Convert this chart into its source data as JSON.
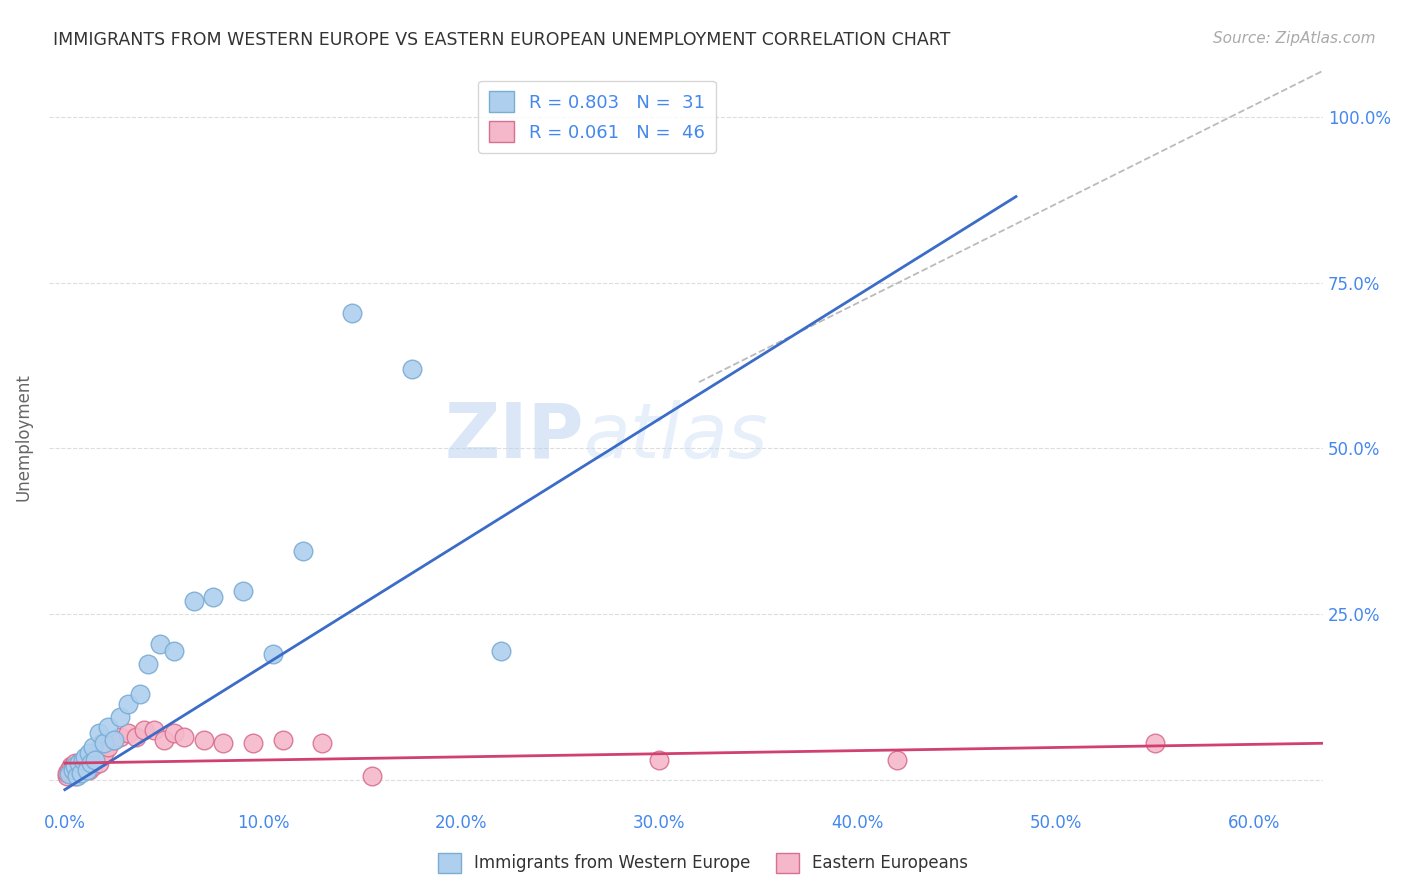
{
  "title": "IMMIGRANTS FROM WESTERN EUROPE VS EASTERN EUROPEAN UNEMPLOYMENT CORRELATION CHART",
  "source": "Source: ZipAtlas.com",
  "ylabel": "Unemployment",
  "watermark_zip": "ZIP",
  "watermark_atlas": "atlas",
  "x_ticks": [
    0.0,
    0.1,
    0.2,
    0.3,
    0.4,
    0.5,
    0.6
  ],
  "x_tick_labels": [
    "0.0%",
    "10.0%",
    "20.0%",
    "30.0%",
    "40.0%",
    "50.0%",
    "60.0%"
  ],
  "y_ticks": [
    0.0,
    0.25,
    0.5,
    0.75,
    1.0
  ],
  "y_tick_labels_right": [
    "",
    "25.0%",
    "50.0%",
    "75.0%",
    "100.0%"
  ],
  "xlim": [
    -0.008,
    0.635
  ],
  "ylim": [
    -0.045,
    1.08
  ],
  "series1_label": "Immigrants from Western Europe",
  "series1_R": "0.803",
  "series1_N": "31",
  "series1_color": "#aecfee",
  "series1_edge_color": "#7aadd4",
  "series1_line_color": "#3a6cc8",
  "series2_label": "Eastern Europeans",
  "series2_R": "0.061",
  "series2_N": "46",
  "series2_color": "#f5b8ca",
  "series2_edge_color": "#d87090",
  "series2_line_color": "#d04070",
  "blue_scatter_x": [
    0.002,
    0.004,
    0.005,
    0.006,
    0.007,
    0.008,
    0.009,
    0.01,
    0.011,
    0.012,
    0.013,
    0.014,
    0.015,
    0.017,
    0.02,
    0.022,
    0.025,
    0.028,
    0.032,
    0.038,
    0.042,
    0.048,
    0.055,
    0.065,
    0.075,
    0.09,
    0.105,
    0.12,
    0.145,
    0.175,
    0.22
  ],
  "blue_scatter_y": [
    0.008,
    0.015,
    0.02,
    0.005,
    0.025,
    0.01,
    0.03,
    0.035,
    0.015,
    0.04,
    0.025,
    0.05,
    0.03,
    0.07,
    0.055,
    0.08,
    0.06,
    0.095,
    0.115,
    0.13,
    0.175,
    0.205,
    0.195,
    0.27,
    0.275,
    0.285,
    0.19,
    0.345,
    0.705,
    0.62,
    0.195
  ],
  "pink_scatter_x": [
    0.001,
    0.001,
    0.002,
    0.002,
    0.003,
    0.003,
    0.004,
    0.004,
    0.005,
    0.005,
    0.006,
    0.006,
    0.007,
    0.007,
    0.008,
    0.009,
    0.01,
    0.011,
    0.012,
    0.013,
    0.014,
    0.015,
    0.016,
    0.017,
    0.018,
    0.019,
    0.02,
    0.022,
    0.025,
    0.028,
    0.032,
    0.036,
    0.04,
    0.045,
    0.05,
    0.055,
    0.06,
    0.07,
    0.08,
    0.095,
    0.11,
    0.13,
    0.155,
    0.3,
    0.42,
    0.55
  ],
  "pink_scatter_y": [
    0.005,
    0.01,
    0.01,
    0.015,
    0.02,
    0.01,
    0.02,
    0.015,
    0.025,
    0.005,
    0.015,
    0.02,
    0.01,
    0.025,
    0.015,
    0.02,
    0.025,
    0.03,
    0.015,
    0.035,
    0.02,
    0.03,
    0.04,
    0.025,
    0.035,
    0.055,
    0.04,
    0.05,
    0.06,
    0.065,
    0.07,
    0.065,
    0.075,
    0.075,
    0.06,
    0.07,
    0.065,
    0.06,
    0.055,
    0.055,
    0.06,
    0.055,
    0.005,
    0.03,
    0.03,
    0.055
  ],
  "blue_line_x": [
    0.0,
    0.48
  ],
  "blue_line_y": [
    -0.015,
    0.88
  ],
  "pink_line_x": [
    0.0,
    0.635
  ],
  "pink_line_y": [
    0.025,
    0.055
  ],
  "ref_line_x": [
    0.32,
    0.635
  ],
  "ref_line_y": [
    0.6,
    1.07
  ],
  "background_color": "#ffffff",
  "grid_color": "#dddddd",
  "title_color": "#333333",
  "axis_color": "#4488ee",
  "tick_color": "#4488ee",
  "source_color": "#aaaaaa"
}
